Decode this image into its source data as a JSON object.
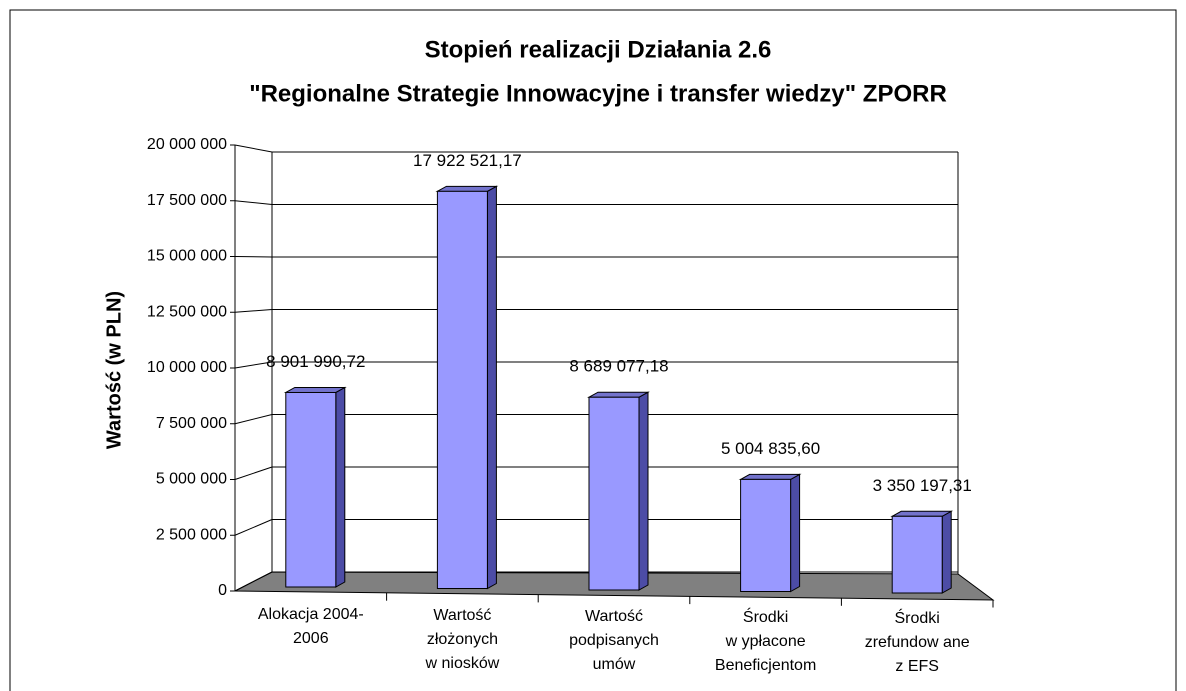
{
  "chart_data": {
    "type": "bar",
    "title": "Stopień realizacji Działania 2.6",
    "subtitle": "\"Regionalne Strategie Innowacyjne i transfer wiedzy\" ZPORR",
    "y_label": "Wartość (w PLN)",
    "categories": [
      "Alokacja 2004-\n2006",
      "Wartość\nzłożonych\nw niosków",
      "Wartość\npodpisanych\numów",
      "Środki\nw ypłacone\nBeneficjentom",
      "Środki\nzrefundow ane\nz EFS"
    ],
    "values": [
      8901990.72,
      17922521.17,
      8689077.18,
      5004835.6,
      3350197.31
    ],
    "value_labels": [
      "8 901 990,72",
      "17 922 521,17",
      "8 689 077,18",
      "5 004 835,60",
      "3 350 197,31"
    ],
    "color": "#9999ff",
    "ylim": [
      0,
      20000000
    ],
    "yticks": [
      0,
      {
        "value": 2500000,
        "label": "2 500 000"
      },
      {
        "value": 5000000,
        "label": "5 000 000"
      },
      {
        "value": 7500000,
        "label": "7 500 000"
      },
      {
        "value": 10000000,
        "label": "10 000 000"
      },
      {
        "value": 12500000,
        "label": "12 500 000"
      },
      {
        "value": 15000000,
        "label": "15 000 000"
      },
      {
        "value": 17500000,
        "label": "17 500 000"
      },
      {
        "value": 20000000,
        "label": "20 000 000"
      }
    ],
    "grid": true
  }
}
